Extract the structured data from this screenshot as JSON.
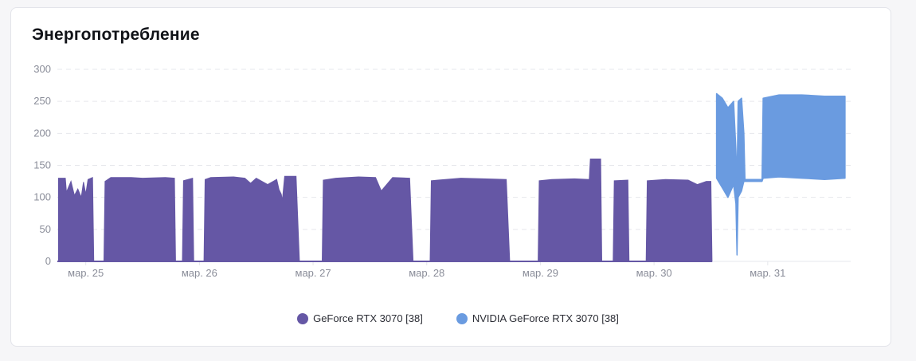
{
  "card": {
    "title": "Энергопотребление"
  },
  "colors": {
    "series1": "#6557a5",
    "series2": "#6a9be0",
    "grid": "#e6e7ec",
    "tick": "#8a8d99"
  },
  "chart_data": {
    "type": "area",
    "title": "Энергопотребление",
    "xlabel": "",
    "ylabel": "",
    "ylim": [
      0,
      300
    ],
    "yticks": [
      0,
      50,
      100,
      150,
      200,
      250,
      300
    ],
    "xlim": [
      24.75,
      31.73
    ],
    "xticks": [
      {
        "value": 25,
        "label": "мар. 25"
      },
      {
        "value": 26,
        "label": "мар. 26"
      },
      {
        "value": 27,
        "label": "мар. 27"
      },
      {
        "value": 28,
        "label": "мар. 28"
      },
      {
        "value": 29,
        "label": "мар. 29"
      },
      {
        "value": 30,
        "label": "мар. 30"
      },
      {
        "value": 31,
        "label": "мар. 31"
      }
    ],
    "grid": true,
    "legend_position": "bottom",
    "series": [
      {
        "name": "GeForce RTX 3070 [38]",
        "kind": "area",
        "points": [
          [
            24.76,
            130
          ],
          [
            24.82,
            130
          ],
          [
            24.83,
            108
          ],
          [
            24.87,
            125
          ],
          [
            24.9,
            103
          ],
          [
            24.93,
            113
          ],
          [
            24.96,
            100
          ],
          [
            24.98,
            124
          ],
          [
            25.0,
            105
          ],
          [
            25.02,
            128
          ],
          [
            25.06,
            131
          ],
          [
            25.07,
            0
          ],
          [
            25.16,
            0
          ],
          [
            25.17,
            125
          ],
          [
            25.22,
            131
          ],
          [
            25.4,
            131
          ],
          [
            25.5,
            130
          ],
          [
            25.7,
            131
          ],
          [
            25.78,
            130
          ],
          [
            25.79,
            0
          ],
          [
            25.85,
            0
          ],
          [
            25.86,
            126
          ],
          [
            25.94,
            130
          ],
          [
            25.95,
            0
          ],
          [
            26.04,
            0
          ],
          [
            26.05,
            128
          ],
          [
            26.1,
            131
          ],
          [
            26.3,
            132
          ],
          [
            26.4,
            130
          ],
          [
            26.45,
            122
          ],
          [
            26.5,
            130
          ],
          [
            26.6,
            120
          ],
          [
            26.68,
            128
          ],
          [
            26.7,
            112
          ],
          [
            26.72,
            105
          ],
          [
            26.73,
            95
          ],
          [
            26.75,
            133
          ],
          [
            26.85,
            133
          ],
          [
            26.88,
            0
          ],
          [
            27.08,
            0
          ],
          [
            27.09,
            127
          ],
          [
            27.2,
            130
          ],
          [
            27.4,
            132
          ],
          [
            27.55,
            131
          ],
          [
            27.6,
            110
          ],
          [
            27.7,
            131
          ],
          [
            27.85,
            130
          ],
          [
            27.88,
            0
          ],
          [
            28.03,
            0
          ],
          [
            28.04,
            126
          ],
          [
            28.1,
            127
          ],
          [
            28.3,
            130
          ],
          [
            28.5,
            129
          ],
          [
            28.7,
            128
          ],
          [
            28.73,
            0
          ],
          [
            28.98,
            0
          ],
          [
            28.99,
            126
          ],
          [
            29.1,
            128
          ],
          [
            29.3,
            129
          ],
          [
            29.43,
            128
          ],
          [
            29.44,
            160
          ],
          [
            29.53,
            160
          ],
          [
            29.54,
            0
          ],
          [
            29.64,
            0
          ],
          [
            29.65,
            126
          ],
          [
            29.77,
            127
          ],
          [
            29.78,
            0
          ],
          [
            29.93,
            0
          ],
          [
            29.94,
            126
          ],
          [
            30.1,
            128
          ],
          [
            30.3,
            127
          ],
          [
            30.38,
            120
          ],
          [
            30.46,
            125
          ],
          [
            30.5,
            125
          ],
          [
            30.51,
            0
          ]
        ]
      },
      {
        "name": "NVIDIA GeForce RTX 3070 [38]",
        "kind": "band",
        "points": [
          [
            30.55,
            130,
            262
          ],
          [
            30.6,
            115,
            255
          ],
          [
            30.65,
            100,
            240
          ],
          [
            30.7,
            120,
            250
          ],
          [
            30.72,
            90,
            175
          ],
          [
            30.73,
            10,
            125
          ],
          [
            30.74,
            100,
            250
          ],
          [
            30.77,
            110,
            255
          ],
          [
            30.79,
            125,
            200
          ],
          [
            30.8,
            125,
            128
          ],
          [
            30.95,
            125,
            128
          ],
          [
            30.96,
            130,
            255
          ],
          [
            31.1,
            132,
            260
          ],
          [
            31.3,
            130,
            260
          ],
          [
            31.5,
            128,
            258
          ],
          [
            31.68,
            130,
            258
          ]
        ]
      }
    ]
  }
}
